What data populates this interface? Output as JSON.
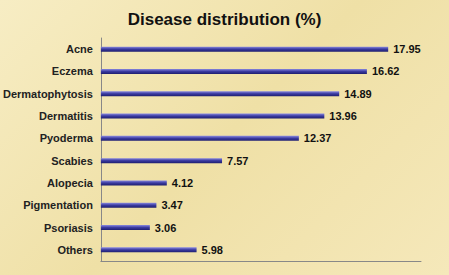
{
  "chart_data": {
    "type": "bar",
    "title": "Disease distribution (%)",
    "orientation": "horizontal",
    "categories": [
      "Acne",
      "Eczema",
      "Dermatophytosis",
      "Dermatitis",
      "Pyoderma",
      "Scabies",
      "Alopecia",
      "Pigmentation",
      "Psoriasis",
      "Others"
    ],
    "values": [
      17.95,
      16.62,
      14.89,
      13.96,
      12.37,
      7.57,
      4.12,
      3.47,
      3.06,
      5.98
    ],
    "color": "#3a3aa0",
    "xlim": [
      0,
      20
    ],
    "grid": false,
    "data_labels": true,
    "tick_labels": "y"
  }
}
